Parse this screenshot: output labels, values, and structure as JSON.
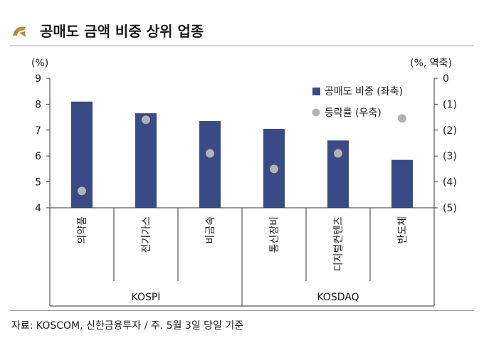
{
  "title": "공매도 금액 비중 상위 업종",
  "source": "자료: KOSCOM, 신한금융투자 / 주. 5월 3일 당일 기준",
  "colors": {
    "bar": "#3a4a87",
    "dot": "#b3b3b3",
    "icon": "#b58a3c",
    "axis": "#333333"
  },
  "chart_data": {
    "type": "bar",
    "categories": [
      "의약품",
      "전기가스",
      "비금속",
      "통신장비",
      "디지털컨텐츠",
      "반도체"
    ],
    "groups": [
      {
        "name": "KOSPI",
        "categories": [
          "의약품",
          "전기가스",
          "비금속"
        ]
      },
      {
        "name": "KOSDAQ",
        "categories": [
          "통신장비",
          "디지털컨텐츠",
          "반도체"
        ]
      }
    ],
    "series": [
      {
        "name": "공매도 비중 (좌축)",
        "type": "bar",
        "axis": "left",
        "values": [
          8.1,
          7.65,
          7.35,
          7.05,
          6.6,
          5.85
        ]
      },
      {
        "name": "등락률 (우축)",
        "type": "scatter",
        "axis": "right",
        "values": [
          4.35,
          1.6,
          2.9,
          3.5,
          2.9,
          1.55
        ]
      }
    ],
    "left_axis": {
      "label": "(%)",
      "min": 4,
      "max": 9,
      "ticks": [
        "4",
        "5",
        "6",
        "7",
        "8",
        "9"
      ]
    },
    "right_axis": {
      "label": "(%, 역축)",
      "min": 0,
      "max": 5,
      "ticks": [
        "0",
        "(1)",
        "(2)",
        "(3)",
        "(4)",
        "(5)"
      ]
    },
    "legend_position": "top-right"
  }
}
